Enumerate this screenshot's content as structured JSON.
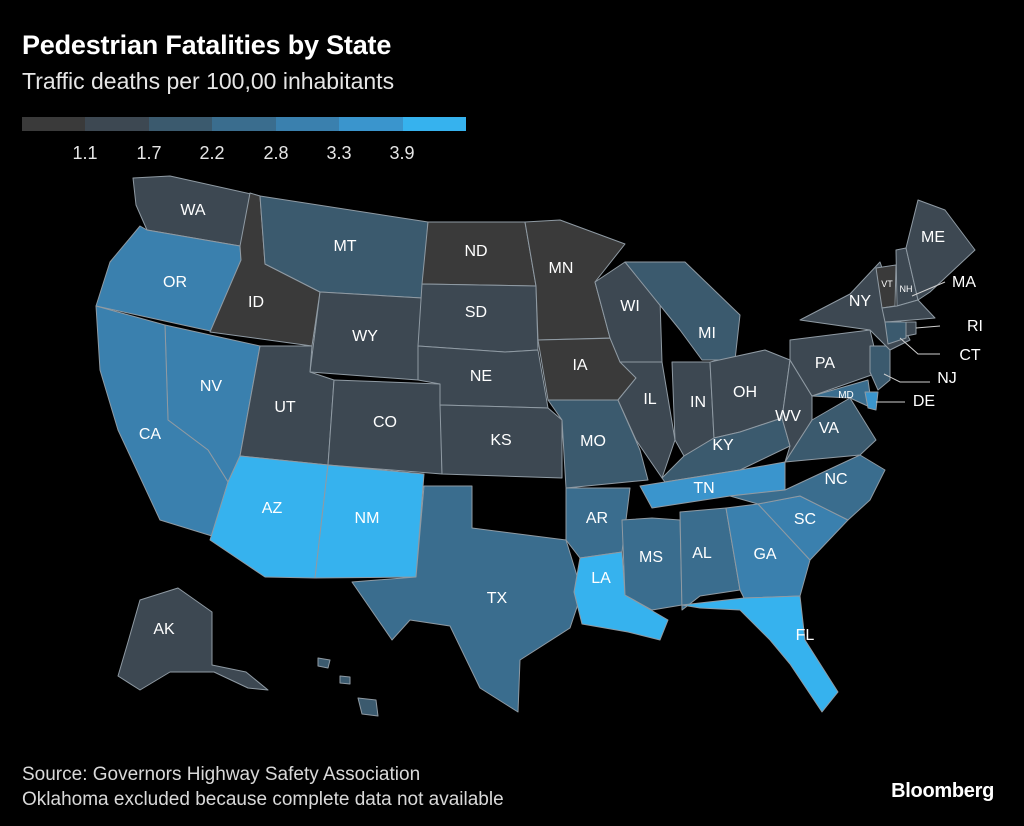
{
  "title": "Pedestrian Fatalities by State",
  "subtitle": "Traffic deaths per 100,00 inhabitants",
  "legend": {
    "colors": [
      "#3a3a3a",
      "#3d4852",
      "#3b5a6e",
      "#3a6d8e",
      "#3a80ae",
      "#3a95cd",
      "#36b2ee"
    ],
    "ticks": [
      "1.1",
      "1.7",
      "2.2",
      "2.8",
      "3.3",
      "3.9"
    ]
  },
  "states": [
    {
      "abbr": "WA",
      "bin": 1
    },
    {
      "abbr": "OR",
      "bin": 4
    },
    {
      "abbr": "CA",
      "bin": 4
    },
    {
      "abbr": "NV",
      "bin": 4
    },
    {
      "abbr": "ID",
      "bin": 0
    },
    {
      "abbr": "MT",
      "bin": 2
    },
    {
      "abbr": "WY",
      "bin": 1
    },
    {
      "abbr": "UT",
      "bin": 1
    },
    {
      "abbr": "AZ",
      "bin": 6
    },
    {
      "abbr": "NM",
      "bin": 6
    },
    {
      "abbr": "CO",
      "bin": 1
    },
    {
      "abbr": "ND",
      "bin": 0
    },
    {
      "abbr": "SD",
      "bin": 1
    },
    {
      "abbr": "NE",
      "bin": 1
    },
    {
      "abbr": "KS",
      "bin": 1
    },
    {
      "abbr": "TX",
      "bin": 3
    },
    {
      "abbr": "MN",
      "bin": 0
    },
    {
      "abbr": "IA",
      "bin": 0
    },
    {
      "abbr": "MO",
      "bin": 2
    },
    {
      "abbr": "AR",
      "bin": 3
    },
    {
      "abbr": "LA",
      "bin": 6
    },
    {
      "abbr": "WI",
      "bin": 1
    },
    {
      "abbr": "IL",
      "bin": 1
    },
    {
      "abbr": "MI",
      "bin": 2
    },
    {
      "abbr": "IN",
      "bin": 1
    },
    {
      "abbr": "OH",
      "bin": 1
    },
    {
      "abbr": "KY",
      "bin": 2
    },
    {
      "abbr": "TN",
      "bin": 5
    },
    {
      "abbr": "MS",
      "bin": 3
    },
    {
      "abbr": "AL",
      "bin": 3
    },
    {
      "abbr": "GA",
      "bin": 4
    },
    {
      "abbr": "FL",
      "bin": 6
    },
    {
      "abbr": "SC",
      "bin": 4
    },
    {
      "abbr": "NC",
      "bin": 3
    },
    {
      "abbr": "VA",
      "bin": 2
    },
    {
      "abbr": "WV",
      "bin": 1
    },
    {
      "abbr": "PA",
      "bin": 1
    },
    {
      "abbr": "NY",
      "bin": 1
    },
    {
      "abbr": "VT",
      "bin": 0
    },
    {
      "abbr": "NH",
      "bin": 1
    },
    {
      "abbr": "ME",
      "bin": 1
    },
    {
      "abbr": "MA",
      "bin": 1
    },
    {
      "abbr": "RI",
      "bin": 1
    },
    {
      "abbr": "CT",
      "bin": 2
    },
    {
      "abbr": "NJ",
      "bin": 2
    },
    {
      "abbr": "DE",
      "bin": 5
    },
    {
      "abbr": "MD",
      "bin": 3
    },
    {
      "abbr": "AK",
      "bin": 1
    },
    {
      "abbr": "HI",
      "bin": 2
    }
  ],
  "source_line1": "Source: Governors Highway Safety Association",
  "source_line2": "Oklahoma excluded because complete data not available",
  "brand": "Bloomberg"
}
